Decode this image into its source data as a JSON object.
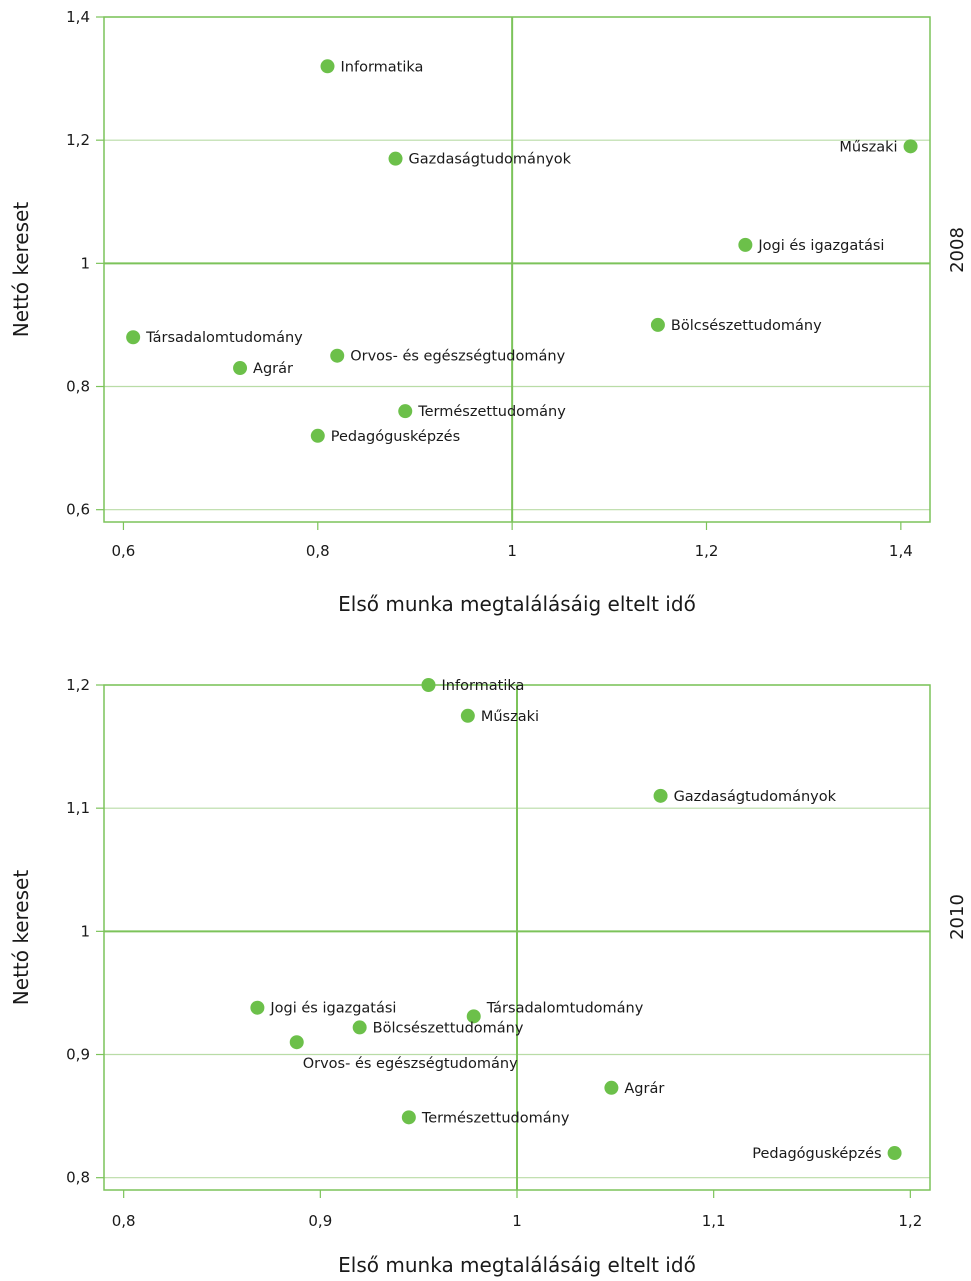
{
  "chart_data": [
    {
      "type": "scatter",
      "title": "",
      "year_label": "2008",
      "xlabel": "Első munka megtalálásáig eltelt idő",
      "ylabel": "Nettó kereset",
      "xlim": [
        0.58,
        1.43
      ],
      "ylim": [
        0.58,
        1.4
      ],
      "x_ticks": [
        0.6,
        0.8,
        1.0,
        1.2,
        1.4
      ],
      "x_tick_labels": [
        "0,6",
        "0,8",
        "1",
        "1,2",
        "1,4"
      ],
      "y_ticks": [
        0.6,
        0.8,
        1.0,
        1.2,
        1.4
      ],
      "y_tick_labels": [
        "0,6",
        "0,8",
        "1",
        "1,2",
        "1,4"
      ],
      "reference_lines": {
        "x": 1.0,
        "y": 1.0
      },
      "grid": true,
      "point_color": "#6cc04a",
      "grid_color": "#b9dca6",
      "frame_color": "#7cc35a",
      "points": [
        {
          "label": "Informatika",
          "x": 0.81,
          "y": 1.32,
          "label_side": "right"
        },
        {
          "label": "Gazdaságtudományok",
          "x": 0.88,
          "y": 1.17,
          "label_side": "right"
        },
        {
          "label": "Műszaki",
          "x": 1.41,
          "y": 1.19,
          "label_side": "left"
        },
        {
          "label": "Jogi és igazgatási",
          "x": 1.24,
          "y": 1.03,
          "label_side": "right"
        },
        {
          "label": "Társadalomtudomány",
          "x": 0.61,
          "y": 0.88,
          "label_side": "right"
        },
        {
          "label": "Bölcsészettudomány",
          "x": 1.15,
          "y": 0.9,
          "label_side": "right"
        },
        {
          "label": "Orvos- és egészségtudomány",
          "x": 0.82,
          "y": 0.85,
          "label_side": "right"
        },
        {
          "label": "Agrár",
          "x": 0.72,
          "y": 0.83,
          "label_side": "right"
        },
        {
          "label": "Természettudomány",
          "x": 0.89,
          "y": 0.76,
          "label_side": "right"
        },
        {
          "label": "Pedagógusképzés",
          "x": 0.8,
          "y": 0.72,
          "label_side": "right"
        }
      ]
    },
    {
      "type": "scatter",
      "title": "",
      "year_label": "2010",
      "xlabel": "Első munka megtalálásáig eltelt idő",
      "ylabel": "Nettó kereset",
      "xlim": [
        0.79,
        1.21
      ],
      "ylim": [
        0.79,
        1.2
      ],
      "x_ticks": [
        0.8,
        0.9,
        1.0,
        1.1,
        1.2
      ],
      "x_tick_labels": [
        "0,8",
        "0,9",
        "1",
        "1,1",
        "1,2"
      ],
      "y_ticks": [
        0.8,
        0.9,
        1.0,
        1.1,
        1.2
      ],
      "y_tick_labels": [
        "0,8",
        "0,9",
        "1",
        "1,1",
        "1,2"
      ],
      "reference_lines": {
        "x": 1.0,
        "y": 1.0
      },
      "grid": true,
      "point_color": "#6cc04a",
      "grid_color": "#b9dca6",
      "frame_color": "#7cc35a",
      "points": [
        {
          "label": "Informatika",
          "x": 0.955,
          "y": 1.2,
          "label_side": "right"
        },
        {
          "label": "Műszaki",
          "x": 0.975,
          "y": 1.175,
          "label_side": "right"
        },
        {
          "label": "Gazdaságtudományok",
          "x": 1.073,
          "y": 1.11,
          "label_side": "right"
        },
        {
          "label": "Jogi és igazgatási",
          "x": 0.868,
          "y": 0.938,
          "label_side": "right"
        },
        {
          "label": "Társadalomtudomány",
          "x": 0.978,
          "y": 0.931,
          "label_side": "right-up"
        },
        {
          "label": "Bölcsészettudomány",
          "x": 0.92,
          "y": 0.922,
          "label_side": "right"
        },
        {
          "label": "Orvos- és egészségtudomány",
          "x": 0.888,
          "y": 0.91,
          "label_side": "below"
        },
        {
          "label": "Agrár",
          "x": 1.048,
          "y": 0.873,
          "label_side": "right"
        },
        {
          "label": "Természettudomány",
          "x": 0.945,
          "y": 0.849,
          "label_side": "right"
        },
        {
          "label": "Pedagógusképzés",
          "x": 1.192,
          "y": 0.82,
          "label_side": "left"
        }
      ]
    }
  ]
}
